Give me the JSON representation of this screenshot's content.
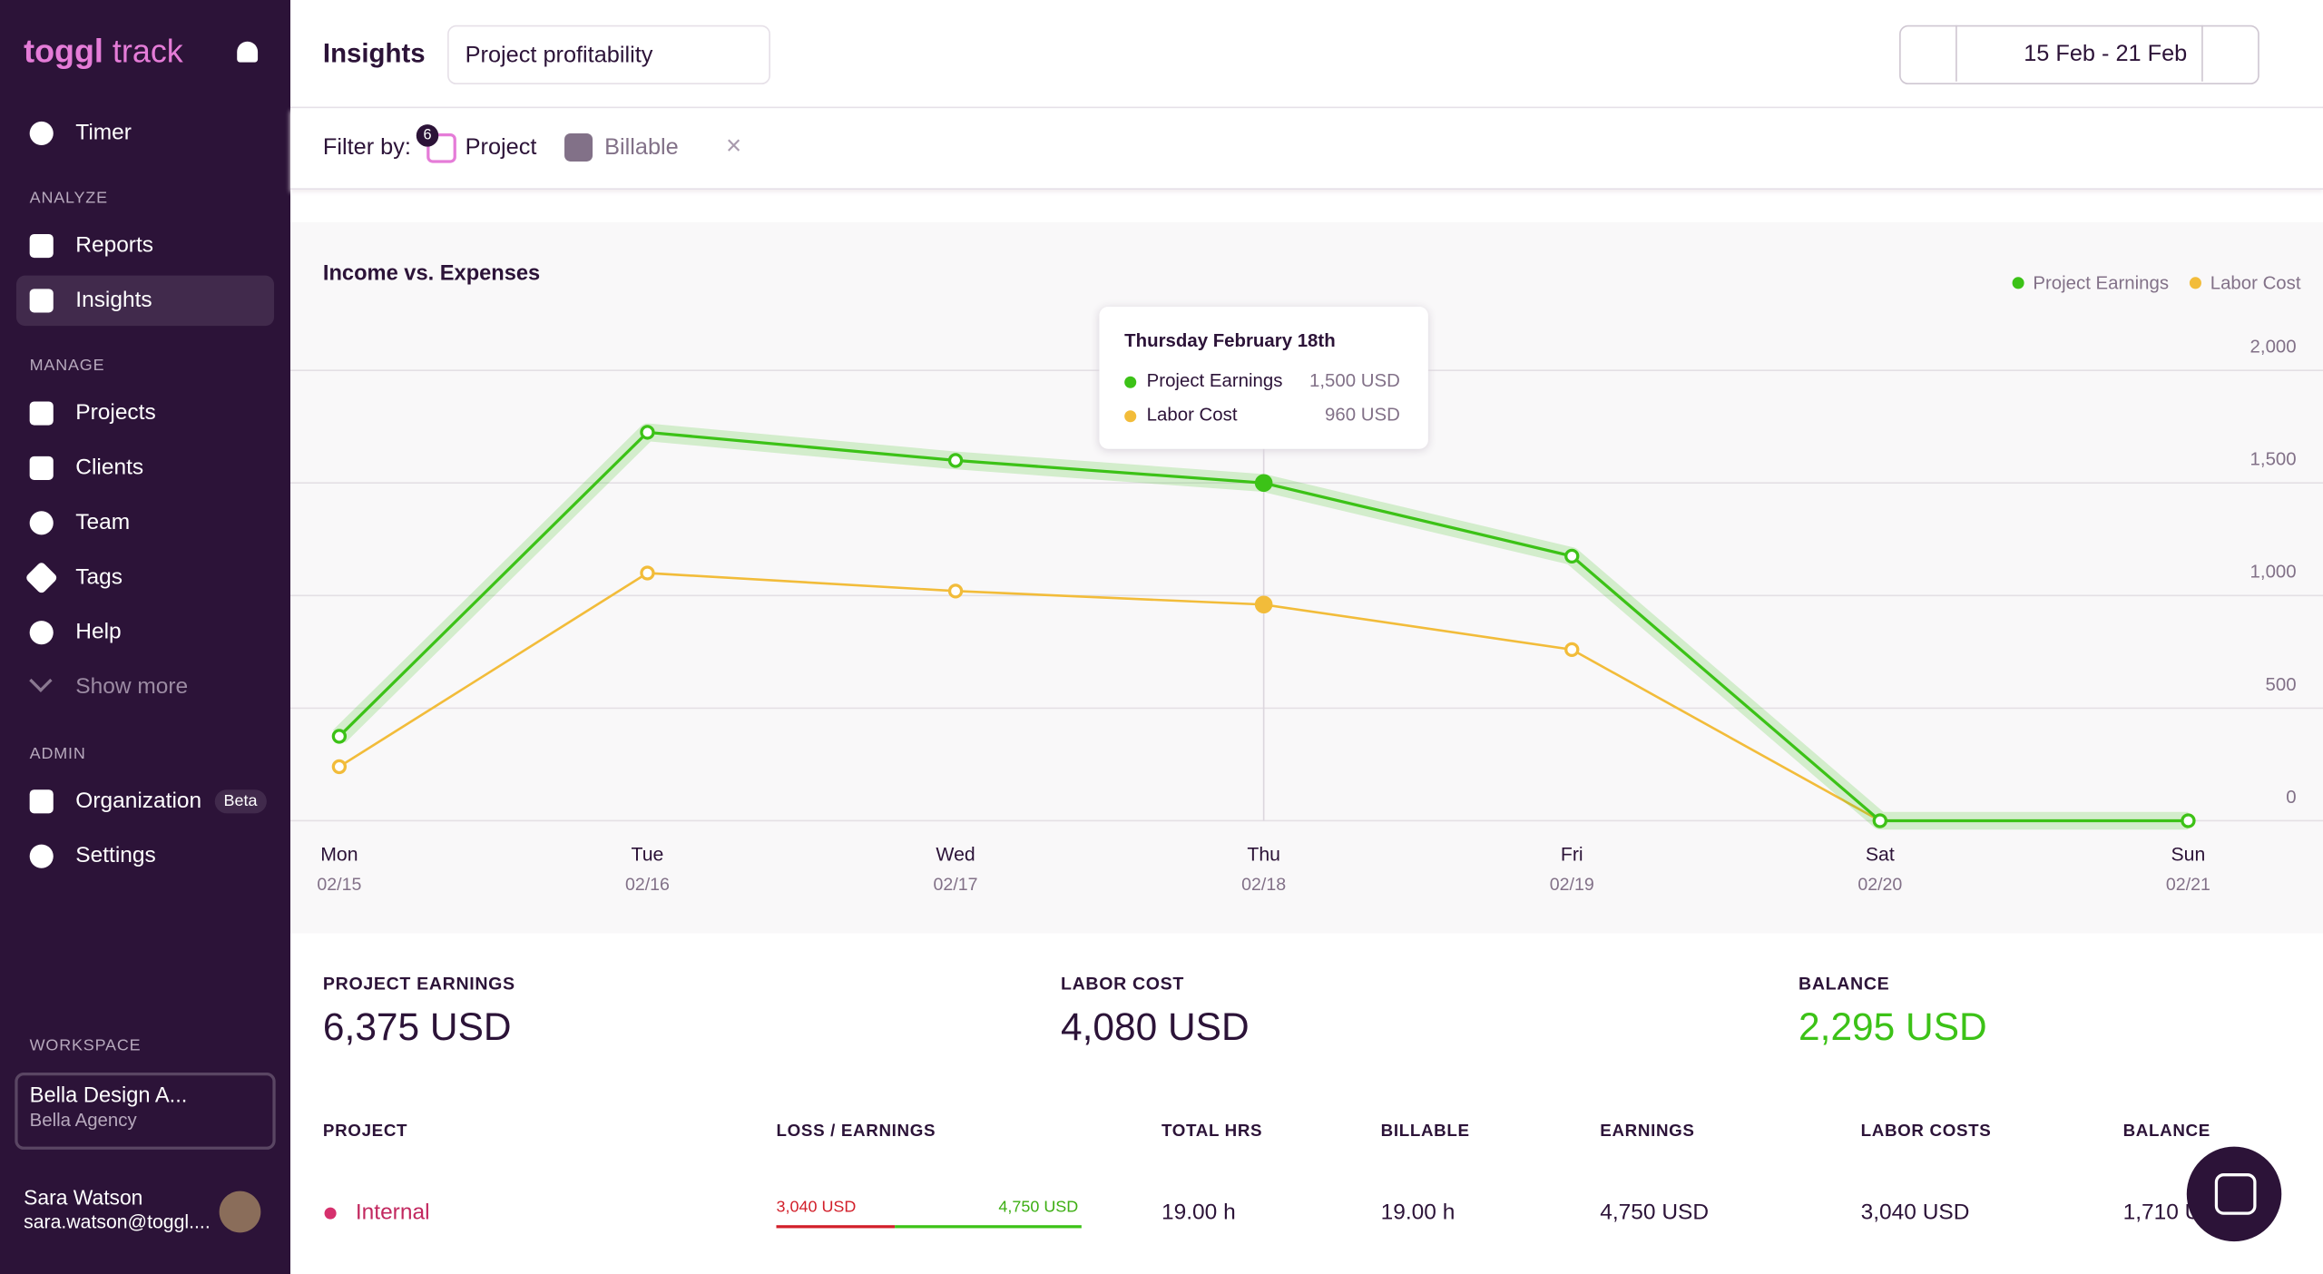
{
  "sidebar": {
    "brand_bold": "toggl",
    "brand": "track",
    "timer": "Timer",
    "analyze": {
      "heading": "ANALYZE",
      "items": [
        "Reports",
        "Insights"
      ]
    },
    "manage": {
      "heading": "MANAGE",
      "items": [
        "Projects",
        "Clients",
        "Team",
        "Tags",
        "Help",
        "Show more"
      ]
    },
    "admin": {
      "heading": "ADMIN",
      "items": [
        "Organization",
        "Settings"
      ],
      "badge": "Beta"
    },
    "workspace": {
      "heading": "WORKSPACE",
      "name": "Bella Design A...",
      "org": "Bella Agency"
    },
    "user": {
      "name": "Sara Watson",
      "email": "sara.watson@toggl...."
    }
  },
  "header": {
    "title": "Insights",
    "report": "Project profitability",
    "date_range": "15 Feb - 21 Feb"
  },
  "filters": {
    "label": "Filter by:",
    "count": 6,
    "project": "Project",
    "billable": "Billable"
  },
  "chart_data": {
    "type": "line",
    "title": "Income vs. Expenses",
    "categories": [
      "Mon",
      "Tue",
      "Wed",
      "Thu",
      "Fri",
      "Sat",
      "Sun"
    ],
    "dates": [
      "02/15",
      "02/16",
      "02/17",
      "02/18",
      "02/19",
      "02/20",
      "02/21"
    ],
    "series": [
      {
        "name": "Project Earnings",
        "color": "#3cc217",
        "values": [
          375,
          1725,
          1600,
          1500,
          1175,
          0,
          0
        ]
      },
      {
        "name": "Labor Cost",
        "color": "#f2bc3a",
        "values": [
          240,
          1100,
          1020,
          960,
          760,
          0,
          0
        ]
      }
    ],
    "ylim": [
      0,
      2000
    ],
    "yticks": [
      0,
      500,
      {
        "value": 1000,
        "label": "1,000"
      },
      {
        "value": 1500,
        "label": "1,500"
      },
      {
        "value": 2000,
        "label": "2,000"
      }
    ],
    "grid": true,
    "legend": "top-right",
    "tooltip": {
      "title": "Thursday February 18th",
      "earnings": "1,500 USD",
      "labor": "960 USD"
    }
  },
  "summary": [
    {
      "label": "PROJECT EARNINGS",
      "value": "6,375 USD"
    },
    {
      "label": "LABOR COST",
      "value": "4,080 USD"
    },
    {
      "label": "BALANCE",
      "value": "2,295 USD"
    }
  ],
  "table": {
    "headers": [
      "PROJECT",
      "LOSS / EARNINGS",
      "TOTAL HRS",
      "BILLABLE",
      "EARNINGS",
      "LABOR COSTS",
      "BALANCE"
    ],
    "rows": [
      {
        "project": "Internal",
        "loss": "3,040 USD",
        "earnings_bar": "4,750 USD",
        "total_hrs": "19.00 h",
        "billable": "19.00 h",
        "earnings": "4,750 USD",
        "labor_costs": "3,040 USD",
        "balance": "1,710 USD"
      }
    ]
  }
}
